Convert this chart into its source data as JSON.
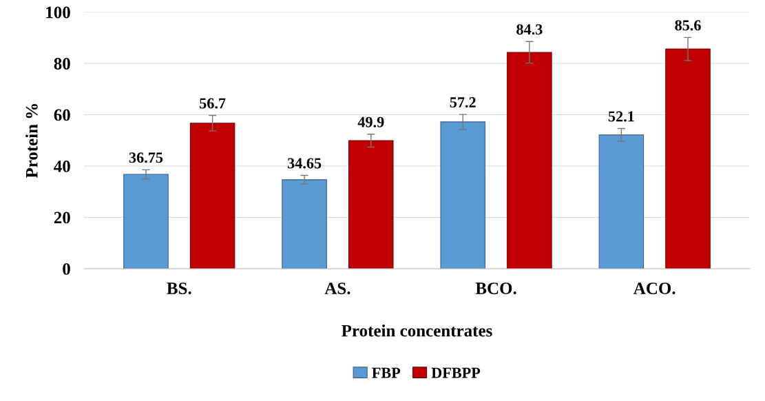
{
  "chart_data": {
    "type": "bar",
    "xlabel": "Protein concentrates",
    "ylabel": "Protein %",
    "categories": [
      "BS.",
      "AS.",
      "BCO.",
      "ACO."
    ],
    "series": [
      {
        "name": "FBP",
        "color": "#5b9bd5",
        "values": [
          36.75,
          34.65,
          57.2,
          52.1
        ],
        "errors": [
          1.8,
          1.7,
          2.9,
          2.5
        ]
      },
      {
        "name": "DFBPP",
        "color": "#c00000",
        "values": [
          56.7,
          49.9,
          84.3,
          85.6
        ],
        "errors": [
          3,
          2.5,
          4.2,
          4.5
        ]
      }
    ],
    "ylim": [
      0,
      100
    ],
    "yticks": [
      0,
      20,
      40,
      60,
      80,
      100
    ],
    "grid": "y",
    "legend": "bottom",
    "data_labels": true
  }
}
